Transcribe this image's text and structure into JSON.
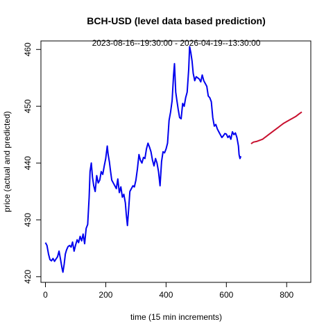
{
  "chart_data": {
    "type": "line",
    "title": "BCH-USD (level data based prediction)",
    "subtitle": "2023-08-16--19:30:00  -  2026-04-19--13:30:00",
    "xlabel": "time (15 min increments)",
    "ylabel": "price (actual and predicted)",
    "xlim": [
      -15,
      880
    ],
    "ylim": [
      419,
      461.5
    ],
    "x_ticks": [
      0,
      200,
      400,
      600,
      800
    ],
    "y_ticks": [
      420,
      430,
      440,
      450,
      460
    ],
    "grid": false,
    "legend": "none",
    "series": [
      {
        "color": "#0000ee",
        "points": [
          [
            0,
            426
          ],
          [
            5,
            425.5
          ],
          [
            10,
            424
          ],
          [
            15,
            423
          ],
          [
            20,
            422.8
          ],
          [
            25,
            423.2
          ],
          [
            30,
            422.7
          ],
          [
            35,
            423.1
          ],
          [
            40,
            423.5
          ],
          [
            45,
            424.5
          ],
          [
            50,
            423
          ],
          [
            55,
            421.5
          ],
          [
            58,
            420.8
          ],
          [
            62,
            422.2
          ],
          [
            66,
            424
          ],
          [
            70,
            424.7
          ],
          [
            75,
            425.3
          ],
          [
            80,
            425.5
          ],
          [
            85,
            425.2
          ],
          [
            90,
            426.1
          ],
          [
            95,
            424.5
          ],
          [
            100,
            425.6
          ],
          [
            105,
            426.5
          ],
          [
            110,
            426
          ],
          [
            115,
            427.1
          ],
          [
            120,
            426.3
          ],
          [
            125,
            427.5
          ],
          [
            130,
            425.8
          ],
          [
            135,
            428.5
          ],
          [
            140,
            429.2
          ],
          [
            145,
            434
          ],
          [
            148,
            438.5
          ],
          [
            152,
            440
          ],
          [
            156,
            437.5
          ],
          [
            160,
            436
          ],
          [
            165,
            435
          ],
          [
            170,
            437.8
          ],
          [
            175,
            436.5
          ],
          [
            180,
            437
          ],
          [
            185,
            438.5
          ],
          [
            190,
            438
          ],
          [
            195,
            439.5
          ],
          [
            200,
            440.8
          ],
          [
            205,
            443
          ],
          [
            208,
            441.5
          ],
          [
            212,
            440.2
          ],
          [
            216,
            438.5
          ],
          [
            220,
            437
          ],
          [
            225,
            436.5
          ],
          [
            230,
            436
          ],
          [
            235,
            435.5
          ],
          [
            240,
            437.2
          ],
          [
            245,
            434.8
          ],
          [
            250,
            435.8
          ],
          [
            255,
            434
          ],
          [
            260,
            434.5
          ],
          [
            265,
            433
          ],
          [
            268,
            431
          ],
          [
            272,
            429
          ],
          [
            276,
            432
          ],
          [
            280,
            435
          ],
          [
            285,
            435.5
          ],
          [
            290,
            436
          ],
          [
            295,
            435.8
          ],
          [
            300,
            437
          ],
          [
            305,
            439
          ],
          [
            310,
            441.5
          ],
          [
            315,
            440.5
          ],
          [
            320,
            440
          ],
          [
            325,
            441
          ],
          [
            330,
            440.8
          ],
          [
            335,
            442.5
          ],
          [
            340,
            443.5
          ],
          [
            345,
            442.8
          ],
          [
            350,
            442
          ],
          [
            355,
            440.5
          ],
          [
            360,
            439.5
          ],
          [
            365,
            440.8
          ],
          [
            370,
            440
          ],
          [
            375,
            438.5
          ],
          [
            380,
            436
          ],
          [
            385,
            440.3
          ],
          [
            390,
            442
          ],
          [
            395,
            441.8
          ],
          [
            400,
            442.5
          ],
          [
            405,
            443.5
          ],
          [
            410,
            447.5
          ],
          [
            415,
            449
          ],
          [
            420,
            451
          ],
          [
            425,
            455.5
          ],
          [
            428,
            457.5
          ],
          [
            432,
            452.5
          ],
          [
            436,
            451
          ],
          [
            440,
            449.5
          ],
          [
            445,
            448
          ],
          [
            450,
            447.8
          ],
          [
            455,
            450.5
          ],
          [
            460,
            450
          ],
          [
            465,
            451.5
          ],
          [
            470,
            452.5
          ],
          [
            475,
            456.5
          ],
          [
            478,
            460.5
          ],
          [
            482,
            459.5
          ],
          [
            486,
            458
          ],
          [
            490,
            455.8
          ],
          [
            495,
            454.5
          ],
          [
            500,
            455.2
          ],
          [
            505,
            455
          ],
          [
            510,
            454.8
          ],
          [
            515,
            454.3
          ],
          [
            520,
            455.5
          ],
          [
            525,
            454.5
          ],
          [
            530,
            454
          ],
          [
            535,
            453.5
          ],
          [
            540,
            451.8
          ],
          [
            545,
            451.5
          ],
          [
            550,
            450.8
          ],
          [
            555,
            448
          ],
          [
            560,
            446.5
          ],
          [
            565,
            446.8
          ],
          [
            570,
            446
          ],
          [
            575,
            445.5
          ],
          [
            580,
            445
          ],
          [
            585,
            444.5
          ],
          [
            590,
            444.8
          ],
          [
            595,
            445.2
          ],
          [
            600,
            445.1
          ],
          [
            605,
            444.5
          ],
          [
            610,
            444.8
          ],
          [
            615,
            444.2
          ],
          [
            620,
            445.5
          ],
          [
            625,
            445
          ],
          [
            630,
            445.3
          ],
          [
            635,
            444.5
          ],
          [
            640,
            443
          ],
          [
            642,
            441.5
          ],
          [
            645,
            440.8
          ],
          [
            648,
            441.2
          ]
        ]
      },
      {
        "color": "#c8102e",
        "points": [
          [
            682,
            443.4
          ],
          [
            690,
            443.7
          ],
          [
            700,
            443.8
          ],
          [
            710,
            444
          ],
          [
            720,
            444.2
          ],
          [
            730,
            444.6
          ],
          [
            740,
            445
          ],
          [
            750,
            445.4
          ],
          [
            760,
            445.8
          ],
          [
            770,
            446.2
          ],
          [
            780,
            446.6
          ],
          [
            790,
            447
          ],
          [
            800,
            447.3
          ],
          [
            810,
            447.6
          ],
          [
            820,
            447.9
          ],
          [
            830,
            448.2
          ],
          [
            840,
            448.6
          ],
          [
            850,
            449
          ]
        ]
      }
    ]
  }
}
